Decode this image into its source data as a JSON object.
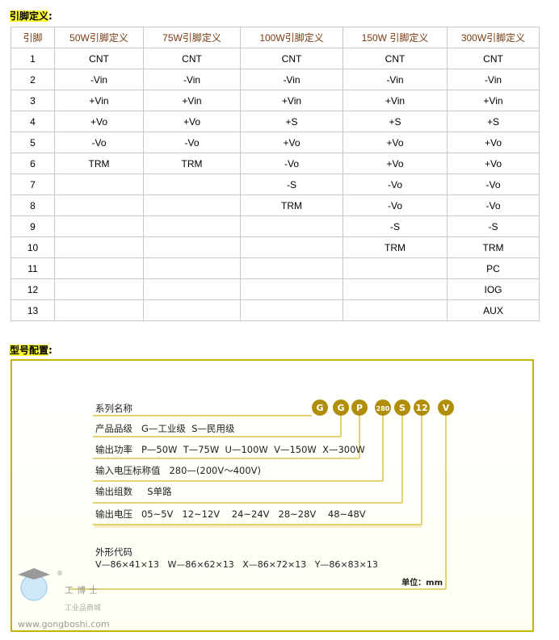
{
  "pin_section": {
    "title": "引脚定义",
    "colon": ":"
  },
  "table": {
    "headers": [
      "引脚",
      "50W引脚定义",
      "75W引脚定义",
      "100W引脚定义",
      "150W 引脚定义",
      "300W引脚定义"
    ],
    "rows": [
      [
        "1",
        "CNT",
        "CNT",
        "CNT",
        "CNT",
        "CNT"
      ],
      [
        "2",
        "-Vin",
        "-Vin",
        "-Vin",
        "-Vin",
        "-Vin"
      ],
      [
        "3",
        "+Vin",
        "+Vin",
        "+Vin",
        "+Vin",
        "+Vin"
      ],
      [
        "4",
        "+Vo",
        "+Vo",
        "+S",
        "+S",
        "+S"
      ],
      [
        "5",
        "-Vo",
        "-Vo",
        "+Vo",
        "+Vo",
        "+Vo"
      ],
      [
        "6",
        "TRM",
        "TRM",
        "-Vo",
        "+Vo",
        "+Vo"
      ],
      [
        "7",
        "",
        "",
        "-S",
        "-Vo",
        "-Vo"
      ],
      [
        "8",
        "",
        "",
        "TRM",
        "-Vo",
        "-Vo"
      ],
      [
        "9",
        "",
        "",
        "",
        "-S",
        "-S"
      ],
      [
        "10",
        "",
        "",
        "",
        "TRM",
        "TRM"
      ],
      [
        "11",
        "",
        "",
        "",
        "",
        "PC"
      ],
      [
        "12",
        "",
        "",
        "",
        "",
        "IOG"
      ],
      [
        "13",
        "",
        "",
        "",
        "",
        "AUX"
      ]
    ]
  },
  "model_section": {
    "title": "型号配置",
    "colon": ":"
  },
  "diagram": {
    "codes": [
      "G",
      "G",
      "P",
      "280",
      "S",
      "12",
      "V"
    ],
    "code_color": "#b08e08",
    "line_color": "#e2d272",
    "lines": [
      "系列名称",
      "产品品级   G—工业级  S—民用级",
      "输出功率   P—50W  T—75W  U—100W  V—150W  X—300W",
      "输入电压标称值   280—(200V～400V)",
      "输出组数     S单路",
      "输出电压   05~5V   12~12V    24~24V   28~28V    48~48V"
    ],
    "shape_title": "外形代码",
    "shape_values": "V—86×41×13   W—86×62×13   X—86×72×13   Y—86×83×13",
    "unit": "单位：mm"
  },
  "watermark": {
    "brand": "工博士",
    "tagline": "工业品商城",
    "url": "www.gongboshi.com",
    "registered": "®"
  }
}
